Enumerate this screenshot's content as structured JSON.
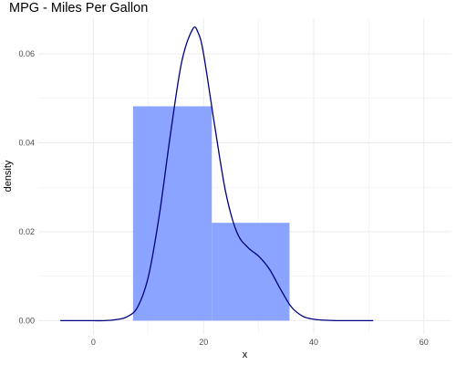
{
  "chart_data": {
    "type": "histogram",
    "title": "MPG - Miles Per Gallon",
    "xlabel": "x",
    "ylabel": "density",
    "xlim": [
      -10,
      65
    ],
    "ylim": [
      -0.003,
      0.068
    ],
    "x_ticks": [
      0,
      20,
      40,
      60
    ],
    "y_ticks": [
      0.0,
      0.02,
      0.04,
      0.06
    ],
    "y_tick_labels": [
      "0.00",
      "0.02",
      "0.04",
      "0.06"
    ],
    "grid": true,
    "bins": [
      {
        "x_start": 7.2,
        "x_end": 21.5,
        "density": 0.0482
      },
      {
        "x_start": 21.5,
        "x_end": 35.6,
        "density": 0.022
      }
    ],
    "density_curve": {
      "x": [
        -6.0,
        -2.0,
        0.0,
        2.0,
        4.0,
        6.0,
        8.0,
        10.0,
        12.0,
        14.0,
        16.0,
        18.0,
        19.0,
        20.0,
        22.0,
        24.0,
        26.0,
        28.0,
        30.0,
        32.0,
        34.0,
        36.0,
        38.0,
        40.0,
        42.0,
        44.0,
        46.0,
        48.0,
        50.8
      ],
      "y": [
        0.0,
        0.0,
        0.0,
        0.0,
        0.0002,
        0.0008,
        0.003,
        0.01,
        0.024,
        0.042,
        0.058,
        0.0655,
        0.0648,
        0.06,
        0.044,
        0.029,
        0.02,
        0.0165,
        0.0145,
        0.0115,
        0.007,
        0.003,
        0.001,
        0.0003,
        0.0001,
        0.0,
        0.0,
        0.0,
        0.0
      ]
    },
    "colors": {
      "bar_fill": "#8aa4ff",
      "curve": "#000080",
      "grid": "#ebebeb"
    }
  }
}
